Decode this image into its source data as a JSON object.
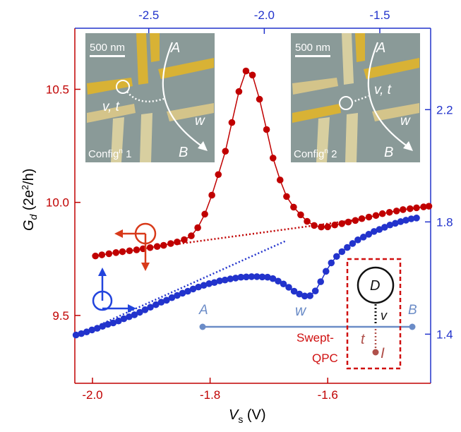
{
  "chart_data": {
    "type": "scatter",
    "title": "",
    "xlabel": {
      "main": "V",
      "sub": "s",
      "unit": " (V)"
    },
    "ylabel": {
      "main": "G",
      "sub": "d",
      "unit_pre": " (2e",
      "sup": "2",
      "unit_post": "/h)"
    },
    "x_bottom": {
      "range": [
        -2.03,
        -1.425
      ],
      "ticks": [
        -2.0,
        -1.8,
        -1.6
      ],
      "tick_labels": [
        "-2.0",
        "-1.8",
        "-1.6"
      ]
    },
    "x_top": {
      "range": [
        -2.82,
        -1.28
      ],
      "ticks": [
        -2.5,
        -2.0,
        -1.5
      ],
      "tick_labels": [
        "-2.5",
        "-2.0",
        "-1.5"
      ]
    },
    "y_left": {
      "range": [
        9.2,
        10.77
      ],
      "ticks": [
        9.5,
        10.0,
        10.5
      ],
      "tick_labels": [
        "9.5",
        "10.0",
        "10.5"
      ]
    },
    "y_right": {
      "range": [
        1.225,
        2.49
      ],
      "ticks": [
        1.4,
        1.8,
        2.2
      ],
      "tick_labels": [
        "1.4",
        "1.8",
        "2.2"
      ]
    },
    "grid": false,
    "colors": {
      "red": "#c00000",
      "blue": "#2233cc",
      "frame_left": "#c00000",
      "frame_right": "#2233cc",
      "frame_bottom": "#c00000",
      "frame_top": "#2233cc"
    },
    "series": [
      {
        "axis": "bottom-left",
        "color": "#c00000",
        "x": [
          -1.995,
          -1.984,
          -1.972,
          -1.96,
          -1.949,
          -1.937,
          -1.925,
          -1.914,
          -1.902,
          -1.89,
          -1.879,
          -1.867,
          -1.856,
          -1.844,
          -1.832,
          -1.821,
          -1.809,
          -1.797,
          -1.786,
          -1.774,
          -1.763,
          -1.751,
          -1.739,
          -1.728,
          -1.716,
          -1.704,
          -1.693,
          -1.681,
          -1.67,
          -1.658,
          -1.646,
          -1.635,
          -1.623,
          -1.611,
          -1.6,
          -1.588,
          -1.576,
          -1.565,
          -1.553,
          -1.542,
          -1.53,
          -1.518,
          -1.507,
          -1.495,
          -1.483,
          -1.472,
          -1.46,
          -1.449,
          -1.437,
          -1.428
        ],
        "y": [
          9.763,
          9.768,
          9.773,
          9.778,
          9.782,
          9.786,
          9.79,
          9.795,
          9.8,
          9.805,
          9.81,
          9.818,
          9.825,
          9.835,
          9.852,
          9.888,
          9.948,
          10.032,
          10.123,
          10.226,
          10.353,
          10.49,
          10.581,
          10.563,
          10.456,
          10.322,
          10.196,
          10.099,
          10.026,
          9.979,
          9.945,
          9.916,
          9.898,
          9.891,
          9.892,
          9.9,
          9.906,
          9.913,
          9.92,
          9.928,
          9.935,
          9.942,
          9.95,
          9.956,
          9.962,
          9.968,
          9.972,
          9.976,
          9.98,
          9.983
        ]
      },
      {
        "axis": "top-right",
        "color": "#2233cc",
        "x": [
          -2.815,
          -2.792,
          -2.769,
          -2.746,
          -2.723,
          -2.7,
          -2.677,
          -2.654,
          -2.631,
          -2.608,
          -2.585,
          -2.562,
          -2.539,
          -2.516,
          -2.493,
          -2.469,
          -2.446,
          -2.423,
          -2.4,
          -2.377,
          -2.354,
          -2.331,
          -2.308,
          -2.285,
          -2.262,
          -2.239,
          -2.216,
          -2.193,
          -2.17,
          -2.147,
          -2.124,
          -2.101,
          -2.078,
          -2.055,
          -2.032,
          -2.009,
          -1.986,
          -1.963,
          -1.94,
          -1.917,
          -1.894,
          -1.871,
          -1.848,
          -1.825,
          -1.802,
          -1.779,
          -1.756,
          -1.733,
          -1.71,
          -1.687,
          -1.664,
          -1.641,
          -1.618,
          -1.595,
          -1.571,
          -1.548,
          -1.525,
          -1.502,
          -1.479,
          -1.456,
          -1.433,
          -1.41,
          -1.387,
          -1.364,
          -1.341
        ],
        "y": [
          1.397,
          1.402,
          1.408,
          1.415,
          1.421,
          1.428,
          1.435,
          1.44,
          1.447,
          1.455,
          1.462,
          1.469,
          1.478,
          1.487,
          1.496,
          1.505,
          1.514,
          1.521,
          1.53,
          1.538,
          1.546,
          1.553,
          1.561,
          1.568,
          1.574,
          1.58,
          1.584,
          1.59,
          1.593,
          1.597,
          1.6,
          1.603,
          1.604,
          1.605,
          1.605,
          1.604,
          1.603,
          1.598,
          1.589,
          1.579,
          1.567,
          1.553,
          1.543,
          1.536,
          1.537,
          1.554,
          1.587,
          1.624,
          1.654,
          1.677,
          1.694,
          1.709,
          1.723,
          1.736,
          1.746,
          1.756,
          1.766,
          1.773,
          1.781,
          1.789,
          1.795,
          1.801,
          1.806,
          1.811,
          1.814
        ]
      }
    ],
    "baselines": [
      {
        "axis": "bottom-left",
        "color": "#c00000",
        "from": [
          -1.906,
          9.798
        ],
        "to": [
          -1.54,
          9.927
        ]
      },
      {
        "axis": "top-right",
        "color": "#2233cc",
        "from": [
          -2.71,
          1.434
        ],
        "to": [
          -1.905,
          1.733
        ]
      }
    ],
    "insets": [
      {
        "scale_bar": "500 nm",
        "label_a": "A",
        "label_b": "B",
        "label_vt": "v, t",
        "label_w": "w",
        "caption_pre": "Config",
        "caption_sup": "n",
        "caption_post": " 1"
      },
      {
        "scale_bar": "500 nm",
        "label_a": "A",
        "label_b": "B",
        "label_vt": "v, t",
        "label_w": "w",
        "caption_pre": "Config",
        "caption_sup": "n",
        "caption_post": " 2"
      }
    ],
    "schematic": {
      "label_a": "A",
      "label_b": "B",
      "label_w": "w",
      "label_d": "D",
      "label_v": "v",
      "label_t": "t",
      "label_i": "I",
      "label_swept_1": "Swept-",
      "label_swept_2": "QPC",
      "colors": {
        "line": "#6b8cc7",
        "box": "#d01010",
        "qpc": "#b0504a"
      }
    }
  }
}
